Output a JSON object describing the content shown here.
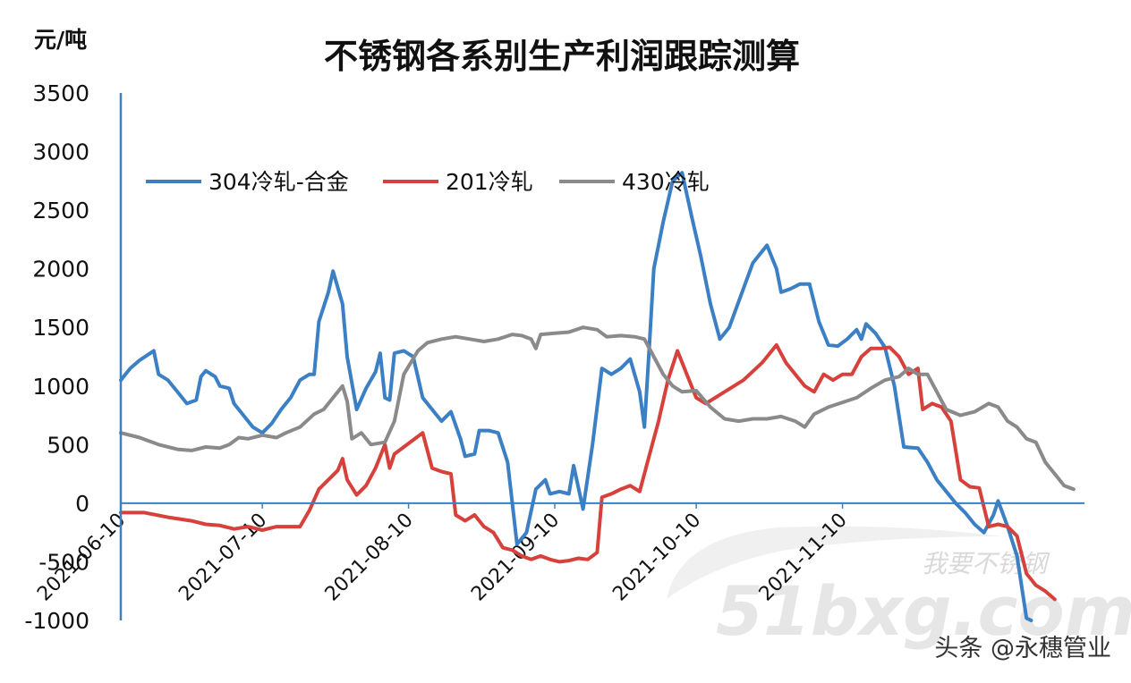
{
  "chart_data": {
    "type": "line",
    "title": "不锈钢各系别生产利润跟踪测算",
    "unit_label": "元/吨",
    "ylim": [
      -1000,
      3500
    ],
    "yticks": [
      3500,
      3000,
      2500,
      2000,
      1500,
      1000,
      500,
      0,
      -500,
      -1000
    ],
    "date_range": [
      "2021-06-10",
      "2021-11-30"
    ],
    "xticks": [
      "2021-06-10",
      "2021-07-10",
      "2021-08-10",
      "2021-09-10",
      "2021-10-10",
      "2021-11-10"
    ],
    "legend_position": "top-left",
    "series": [
      {
        "name": "304冷轧-合金",
        "color": "#3b7fc4",
        "points": [
          [
            "2021-06-10",
            1050
          ],
          [
            "2021-06-12",
            1150
          ],
          [
            "2021-06-14",
            1220
          ],
          [
            "2021-06-17",
            1300
          ],
          [
            "2021-06-18",
            1100
          ],
          [
            "2021-06-20",
            1050
          ],
          [
            "2021-06-22",
            950
          ],
          [
            "2021-06-24",
            850
          ],
          [
            "2021-06-26",
            880
          ],
          [
            "2021-06-27",
            1080
          ],
          [
            "2021-06-28",
            1130
          ],
          [
            "2021-06-30",
            1080
          ],
          [
            "2021-07-01",
            1000
          ],
          [
            "2021-07-03",
            980
          ],
          [
            "2021-07-04",
            850
          ],
          [
            "2021-07-06",
            750
          ],
          [
            "2021-07-08",
            650
          ],
          [
            "2021-07-10",
            600
          ],
          [
            "2021-07-12",
            680
          ],
          [
            "2021-07-14",
            800
          ],
          [
            "2021-07-16",
            900
          ],
          [
            "2021-07-18",
            1050
          ],
          [
            "2021-07-20",
            1100
          ],
          [
            "2021-07-21",
            1100
          ],
          [
            "2021-07-22",
            1550
          ],
          [
            "2021-07-24",
            1800
          ],
          [
            "2021-07-25",
            1980
          ],
          [
            "2021-07-27",
            1700
          ],
          [
            "2021-07-28",
            1250
          ],
          [
            "2021-07-30",
            800
          ],
          [
            "2021-08-01",
            980
          ],
          [
            "2021-08-03",
            1120
          ],
          [
            "2021-08-04",
            1280
          ],
          [
            "2021-08-05",
            900
          ],
          [
            "2021-08-06",
            880
          ],
          [
            "2021-08-07",
            1280
          ],
          [
            "2021-08-09",
            1300
          ],
          [
            "2021-08-11",
            1250
          ],
          [
            "2021-08-13",
            900
          ],
          [
            "2021-08-15",
            800
          ],
          [
            "2021-08-17",
            700
          ],
          [
            "2021-08-19",
            780
          ],
          [
            "2021-08-21",
            550
          ],
          [
            "2021-08-22",
            400
          ],
          [
            "2021-08-24",
            420
          ],
          [
            "2021-08-25",
            620
          ],
          [
            "2021-08-27",
            620
          ],
          [
            "2021-08-29",
            600
          ],
          [
            "2021-08-31",
            350
          ],
          [
            "2021-09-02",
            -350
          ],
          [
            "2021-09-04",
            -250
          ],
          [
            "2021-09-06",
            120
          ],
          [
            "2021-09-08",
            200
          ],
          [
            "2021-09-09",
            80
          ],
          [
            "2021-09-11",
            100
          ],
          [
            "2021-09-13",
            80
          ],
          [
            "2021-09-14",
            320
          ],
          [
            "2021-09-16",
            -50
          ],
          [
            "2021-09-18",
            500
          ],
          [
            "2021-09-20",
            1150
          ],
          [
            "2021-09-22",
            1100
          ],
          [
            "2021-09-24",
            1150
          ],
          [
            "2021-09-26",
            1230
          ],
          [
            "2021-09-28",
            950
          ],
          [
            "2021-09-29",
            650
          ],
          [
            "2021-09-30",
            1300
          ],
          [
            "2021-10-01",
            2000
          ],
          [
            "2021-10-03",
            2400
          ],
          [
            "2021-10-05",
            2750
          ],
          [
            "2021-10-07",
            2820
          ],
          [
            "2021-10-09",
            2450
          ],
          [
            "2021-10-11",
            2100
          ],
          [
            "2021-10-13",
            1700
          ],
          [
            "2021-10-15",
            1400
          ],
          [
            "2021-10-17",
            1500
          ],
          [
            "2021-10-22",
            2050
          ],
          [
            "2021-10-25",
            2200
          ],
          [
            "2021-10-27",
            2000
          ],
          [
            "2021-10-28",
            1800
          ],
          [
            "2021-10-30",
            1830
          ],
          [
            "2021-11-01",
            1870
          ],
          [
            "2021-11-03",
            1870
          ],
          [
            "2021-11-05",
            1550
          ],
          [
            "2021-11-07",
            1350
          ],
          [
            "2021-11-09",
            1340
          ],
          [
            "2021-11-11",
            1400
          ],
          [
            "2021-11-13",
            1480
          ],
          [
            "2021-11-14",
            1400
          ],
          [
            "2021-11-15",
            1530
          ],
          [
            "2021-11-17",
            1450
          ],
          [
            "2021-11-19",
            1330
          ],
          [
            "2021-11-21",
            1000
          ],
          [
            "2021-11-23",
            480
          ],
          [
            "2021-11-26",
            470
          ],
          [
            "2021-11-28",
            350
          ],
          [
            "2021-11-30",
            200
          ],
          [
            "2021-12-02",
            100
          ],
          [
            "2021-12-04",
            0
          ],
          [
            "2021-12-06",
            -80
          ],
          [
            "2021-12-08",
            -180
          ],
          [
            "2021-12-10",
            -250
          ],
          [
            "2021-12-12",
            -100
          ],
          [
            "2021-12-13",
            20
          ],
          [
            "2021-12-15",
            -200
          ],
          [
            "2021-12-17",
            -450
          ],
          [
            "2021-12-19",
            -980
          ],
          [
            "2021-12-20",
            -1000
          ]
        ]
      },
      {
        "name": "201冷轧",
        "color": "#d6413b",
        "points": [
          [
            "2021-06-10",
            -80
          ],
          [
            "2021-06-15",
            -80
          ],
          [
            "2021-06-20",
            -120
          ],
          [
            "2021-06-25",
            -150
          ],
          [
            "2021-06-28",
            -180
          ],
          [
            "2021-07-01",
            -190
          ],
          [
            "2021-07-04",
            -220
          ],
          [
            "2021-07-07",
            -200
          ],
          [
            "2021-07-10",
            -230
          ],
          [
            "2021-07-13",
            -200
          ],
          [
            "2021-07-16",
            -200
          ],
          [
            "2021-07-18",
            -200
          ],
          [
            "2021-07-20",
            -60
          ],
          [
            "2021-07-22",
            120
          ],
          [
            "2021-07-24",
            200
          ],
          [
            "2021-07-26",
            280
          ],
          [
            "2021-07-27",
            380
          ],
          [
            "2021-07-28",
            200
          ],
          [
            "2021-07-30",
            70
          ],
          [
            "2021-08-01",
            150
          ],
          [
            "2021-08-03",
            300
          ],
          [
            "2021-08-05",
            500
          ],
          [
            "2021-08-06",
            300
          ],
          [
            "2021-08-07",
            420
          ],
          [
            "2021-08-09",
            480
          ],
          [
            "2021-08-11",
            540
          ],
          [
            "2021-08-13",
            600
          ],
          [
            "2021-08-15",
            300
          ],
          [
            "2021-08-17",
            270
          ],
          [
            "2021-08-19",
            250
          ],
          [
            "2021-08-20",
            -100
          ],
          [
            "2021-08-22",
            -150
          ],
          [
            "2021-08-24",
            -100
          ],
          [
            "2021-08-26",
            -200
          ],
          [
            "2021-08-28",
            -250
          ],
          [
            "2021-08-30",
            -380
          ],
          [
            "2021-09-01",
            -400
          ],
          [
            "2021-09-03",
            -450
          ],
          [
            "2021-09-05",
            -480
          ],
          [
            "2021-09-07",
            -450
          ],
          [
            "2021-09-09",
            -480
          ],
          [
            "2021-09-11",
            -500
          ],
          [
            "2021-09-13",
            -490
          ],
          [
            "2021-09-15",
            -470
          ],
          [
            "2021-09-17",
            -480
          ],
          [
            "2021-09-19",
            -420
          ],
          [
            "2021-09-20",
            50
          ],
          [
            "2021-09-22",
            80
          ],
          [
            "2021-09-24",
            120
          ],
          [
            "2021-09-26",
            150
          ],
          [
            "2021-09-28",
            100
          ],
          [
            "2021-09-30",
            400
          ],
          [
            "2021-10-02",
            700
          ],
          [
            "2021-10-04",
            1050
          ],
          [
            "2021-10-06",
            1300
          ],
          [
            "2021-10-08",
            1100
          ],
          [
            "2021-10-10",
            900
          ],
          [
            "2021-10-12",
            850
          ],
          [
            "2021-10-14",
            900
          ],
          [
            "2021-10-16",
            950
          ],
          [
            "2021-10-20",
            1050
          ],
          [
            "2021-10-24",
            1200
          ],
          [
            "2021-10-27",
            1350
          ],
          [
            "2021-10-29",
            1200
          ],
          [
            "2021-10-31",
            1100
          ],
          [
            "2021-11-02",
            1000
          ],
          [
            "2021-11-04",
            950
          ],
          [
            "2021-11-06",
            1100
          ],
          [
            "2021-11-08",
            1050
          ],
          [
            "2021-11-10",
            1100
          ],
          [
            "2021-11-12",
            1100
          ],
          [
            "2021-11-14",
            1250
          ],
          [
            "2021-11-16",
            1320
          ],
          [
            "2021-11-18",
            1320
          ],
          [
            "2021-11-20",
            1330
          ],
          [
            "2021-11-22",
            1250
          ],
          [
            "2021-11-24",
            1100
          ],
          [
            "2021-11-26",
            1150
          ],
          [
            "2021-11-27",
            800
          ],
          [
            "2021-11-29",
            850
          ],
          [
            "2021-12-01",
            820
          ],
          [
            "2021-12-03",
            700
          ],
          [
            "2021-12-05",
            200
          ],
          [
            "2021-12-07",
            140
          ],
          [
            "2021-12-09",
            130
          ],
          [
            "2021-12-11",
            -200
          ],
          [
            "2021-12-13",
            -180
          ],
          [
            "2021-12-15",
            -200
          ],
          [
            "2021-12-17",
            -280
          ],
          [
            "2021-12-19",
            -600
          ],
          [
            "2021-12-21",
            -700
          ],
          [
            "2021-12-23",
            -750
          ],
          [
            "2021-12-25",
            -820
          ]
        ]
      },
      {
        "name": "430冷轧",
        "color": "#8a8a8a",
        "points": [
          [
            "2021-06-10",
            600
          ],
          [
            "2021-06-14",
            560
          ],
          [
            "2021-06-18",
            500
          ],
          [
            "2021-06-22",
            460
          ],
          [
            "2021-06-25",
            450
          ],
          [
            "2021-06-28",
            480
          ],
          [
            "2021-07-01",
            470
          ],
          [
            "2021-07-03",
            500
          ],
          [
            "2021-07-05",
            560
          ],
          [
            "2021-07-07",
            550
          ],
          [
            "2021-07-10",
            580
          ],
          [
            "2021-07-13",
            560
          ],
          [
            "2021-07-15",
            600
          ],
          [
            "2021-07-18",
            650
          ],
          [
            "2021-07-21",
            760
          ],
          [
            "2021-07-23",
            800
          ],
          [
            "2021-07-25",
            900
          ],
          [
            "2021-07-27",
            1000
          ],
          [
            "2021-07-28",
            870
          ],
          [
            "2021-07-29",
            550
          ],
          [
            "2021-07-31",
            600
          ],
          [
            "2021-08-02",
            500
          ],
          [
            "2021-08-05",
            520
          ],
          [
            "2021-08-07",
            700
          ],
          [
            "2021-08-09",
            1100
          ],
          [
            "2021-08-12",
            1300
          ],
          [
            "2021-08-14",
            1370
          ],
          [
            "2021-08-17",
            1400
          ],
          [
            "2021-08-20",
            1420
          ],
          [
            "2021-08-23",
            1400
          ],
          [
            "2021-08-26",
            1380
          ],
          [
            "2021-08-29",
            1400
          ],
          [
            "2021-09-01",
            1440
          ],
          [
            "2021-09-03",
            1430
          ],
          [
            "2021-09-05",
            1400
          ],
          [
            "2021-09-06",
            1320
          ],
          [
            "2021-09-07",
            1440
          ],
          [
            "2021-09-10",
            1450
          ],
          [
            "2021-09-13",
            1460
          ],
          [
            "2021-09-16",
            1500
          ],
          [
            "2021-09-19",
            1480
          ],
          [
            "2021-09-21",
            1420
          ],
          [
            "2021-09-24",
            1430
          ],
          [
            "2021-09-27",
            1420
          ],
          [
            "2021-09-29",
            1400
          ],
          [
            "2021-10-01",
            1250
          ],
          [
            "2021-10-03",
            1100
          ],
          [
            "2021-10-05",
            1000
          ],
          [
            "2021-10-07",
            950
          ],
          [
            "2021-10-10",
            960
          ],
          [
            "2021-10-13",
            820
          ],
          [
            "2021-10-16",
            720
          ],
          [
            "2021-10-19",
            700
          ],
          [
            "2021-10-22",
            720
          ],
          [
            "2021-10-25",
            720
          ],
          [
            "2021-10-28",
            740
          ],
          [
            "2021-10-31",
            700
          ],
          [
            "2021-11-02",
            650
          ],
          [
            "2021-11-04",
            760
          ],
          [
            "2021-11-07",
            820
          ],
          [
            "2021-11-10",
            860
          ],
          [
            "2021-11-13",
            900
          ],
          [
            "2021-11-16",
            980
          ],
          [
            "2021-11-19",
            1050
          ],
          [
            "2021-11-22",
            1080
          ],
          [
            "2021-11-24",
            1150
          ],
          [
            "2021-11-26",
            1100
          ],
          [
            "2021-11-28",
            1100
          ],
          [
            "2021-11-30",
            950
          ],
          [
            "2021-12-02",
            800
          ],
          [
            "2021-12-05",
            750
          ],
          [
            "2021-12-08",
            780
          ],
          [
            "2021-12-11",
            850
          ],
          [
            "2021-12-13",
            820
          ],
          [
            "2021-12-15",
            700
          ],
          [
            "2021-12-17",
            650
          ],
          [
            "2021-12-19",
            550
          ],
          [
            "2021-12-21",
            520
          ],
          [
            "2021-12-23",
            350
          ],
          [
            "2021-12-25",
            250
          ],
          [
            "2021-12-27",
            150
          ],
          [
            "2021-12-29",
            120
          ]
        ]
      }
    ]
  },
  "watermark": {
    "text": "我要不锈钢",
    "logo": "51bxg.com"
  },
  "credit": "头条 @永穗管业"
}
